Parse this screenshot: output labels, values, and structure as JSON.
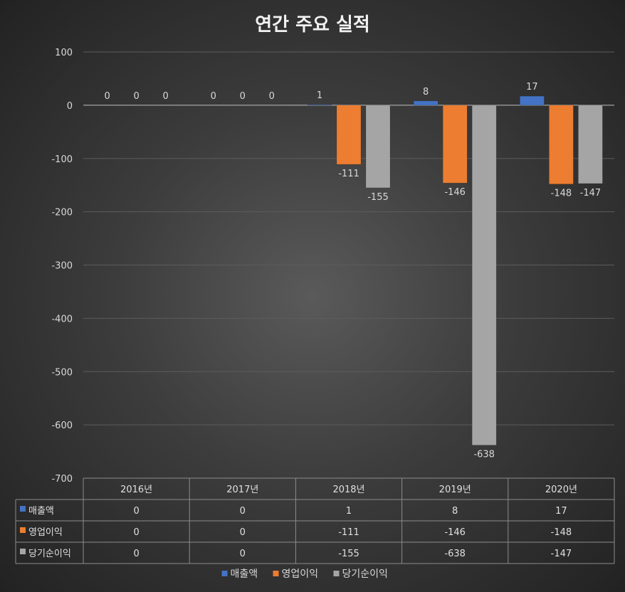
{
  "chart_data": {
    "type": "bar",
    "title": "연간 주요 실적",
    "categories": [
      "2016년",
      "2017년",
      "2018년",
      "2019년",
      "2020년"
    ],
    "series": [
      {
        "name": "매출액",
        "color": "#4472c4",
        "values": [
          0,
          0,
          1,
          8,
          17
        ]
      },
      {
        "name": "영업이익",
        "color": "#ed7d31",
        "values": [
          0,
          0,
          -111,
          -146,
          -148
        ]
      },
      {
        "name": "당기순이익",
        "color": "#a5a5a5",
        "values": [
          0,
          0,
          -155,
          -638,
          -147
        ]
      }
    ],
    "ylim": [
      -700,
      100
    ],
    "yticks": [
      100,
      0,
      -100,
      -200,
      -300,
      -400,
      -500,
      -600,
      -700
    ],
    "grid": true,
    "legend": "bottom",
    "data_table": true
  }
}
